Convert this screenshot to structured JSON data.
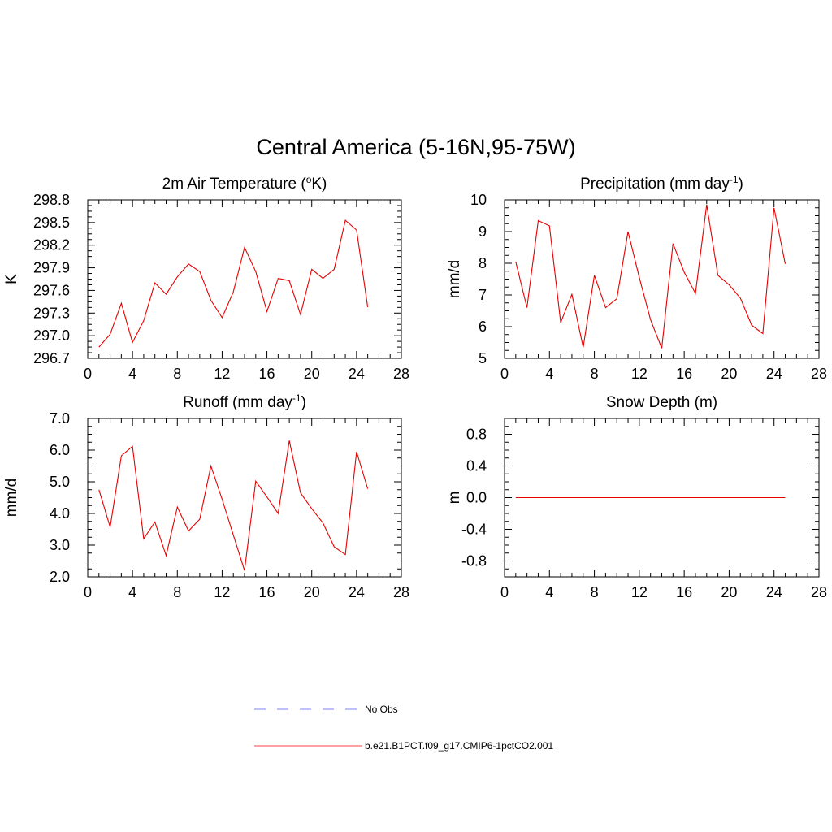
{
  "figure": {
    "title": "Central America (5-16N,95-75W)"
  },
  "legend": {
    "items": [
      {
        "label": "No Obs",
        "color": "#9999ff",
        "dashed": true
      },
      {
        "label": "b.e21.B1PCT.f09_g17.CMIP6-1pctCO2.001",
        "color": "#ff6666",
        "dashed": false
      }
    ]
  },
  "chart_data": [
    {
      "type": "line",
      "title": "2m Air Temperature (",
      "title_sup": "o",
      "title_end": "K)",
      "ylabel": "K",
      "xlabel": "",
      "xlim": [
        0,
        28
      ],
      "ylim": [
        296.7,
        298.8
      ],
      "xticks": [
        "0",
        "4",
        "8",
        "12",
        "16",
        "20",
        "24",
        "28"
      ],
      "yticks": [
        "296.7",
        "297.0",
        "297.3",
        "297.6",
        "297.9",
        "298.2",
        "298.5",
        "298.8"
      ],
      "grid": false,
      "series": [
        {
          "color": "#e60000",
          "x": [
            1,
            2,
            3,
            4,
            5,
            6,
            7,
            8,
            9,
            10,
            11,
            12,
            13,
            14,
            15,
            16,
            17,
            18,
            19,
            20,
            21,
            22,
            23,
            24,
            25
          ],
          "y": [
            296.85,
            297.02,
            297.43,
            296.91,
            297.2,
            297.7,
            297.55,
            297.78,
            297.95,
            297.85,
            297.47,
            297.24,
            297.58,
            298.17,
            297.85,
            297.32,
            297.76,
            297.73,
            297.28,
            297.88,
            297.76,
            297.88,
            298.53,
            298.4,
            297.38
          ]
        }
      ]
    },
    {
      "type": "line",
      "title": "Precipitation (mm day",
      "title_sup": "-1",
      "title_end": ")",
      "ylabel": "mm/d",
      "xlabel": "",
      "xlim": [
        0,
        28
      ],
      "ylim": [
        5,
        10
      ],
      "xticks": [
        "0",
        "4",
        "8",
        "12",
        "16",
        "20",
        "24",
        "28"
      ],
      "yticks": [
        "5",
        "6",
        "7",
        "8",
        "9",
        "10"
      ],
      "grid": false,
      "series": [
        {
          "color": "#e60000",
          "x": [
            1,
            2,
            3,
            4,
            5,
            6,
            7,
            8,
            9,
            10,
            11,
            12,
            13,
            14,
            15,
            16,
            17,
            18,
            19,
            20,
            21,
            22,
            23,
            24,
            25
          ],
          "y": [
            8.05,
            6.6,
            9.35,
            9.18,
            6.13,
            7.02,
            5.35,
            7.62,
            6.6,
            6.88,
            9.0,
            7.55,
            6.22,
            5.32,
            8.62,
            7.72,
            7.05,
            9.85,
            7.62,
            7.32,
            6.9,
            6.05,
            5.78,
            9.75,
            7.98
          ]
        }
      ]
    },
    {
      "type": "line",
      "title": "Runoff (mm day",
      "title_sup": "-1",
      "title_end": ")",
      "ylabel": "mm/d",
      "xlabel": "",
      "xlim": [
        0,
        28
      ],
      "ylim": [
        2.0,
        7.0
      ],
      "xticks": [
        "0",
        "4",
        "8",
        "12",
        "16",
        "20",
        "24",
        "28"
      ],
      "yticks": [
        "2.0",
        "3.0",
        "4.0",
        "5.0",
        "6.0",
        "7.0"
      ],
      "grid": false,
      "series": [
        {
          "color": "#e60000",
          "x": [
            1,
            2,
            3,
            4,
            5,
            6,
            7,
            8,
            9,
            10,
            11,
            12,
            13,
            14,
            15,
            16,
            17,
            18,
            19,
            20,
            21,
            22,
            23,
            24,
            25
          ],
          "y": [
            4.75,
            3.57,
            5.82,
            6.12,
            3.2,
            3.73,
            2.67,
            4.2,
            3.45,
            3.82,
            5.5,
            4.45,
            3.32,
            2.2,
            5.02,
            4.52,
            4.0,
            6.3,
            4.65,
            4.15,
            3.7,
            2.95,
            2.7,
            5.95,
            4.78
          ]
        }
      ]
    },
    {
      "type": "line",
      "title": "Snow Depth (m)",
      "title_sup": "",
      "title_end": "",
      "ylabel": "m",
      "xlabel": "",
      "xlim": [
        0,
        28
      ],
      "ylim": [
        -1.0,
        1.0
      ],
      "xticks": [
        "0",
        "4",
        "8",
        "12",
        "16",
        "20",
        "24",
        "28"
      ],
      "ytick_values": [
        -0.8,
        -0.4,
        0.0,
        0.4,
        0.8
      ],
      "yticks": [
        "-0.8",
        "-0.4",
        "0.0",
        "0.4",
        "0.8"
      ],
      "grid": false,
      "series": [
        {
          "color": "#e60000",
          "x": [
            1,
            25
          ],
          "y": [
            0.0,
            0.0
          ]
        }
      ]
    }
  ]
}
